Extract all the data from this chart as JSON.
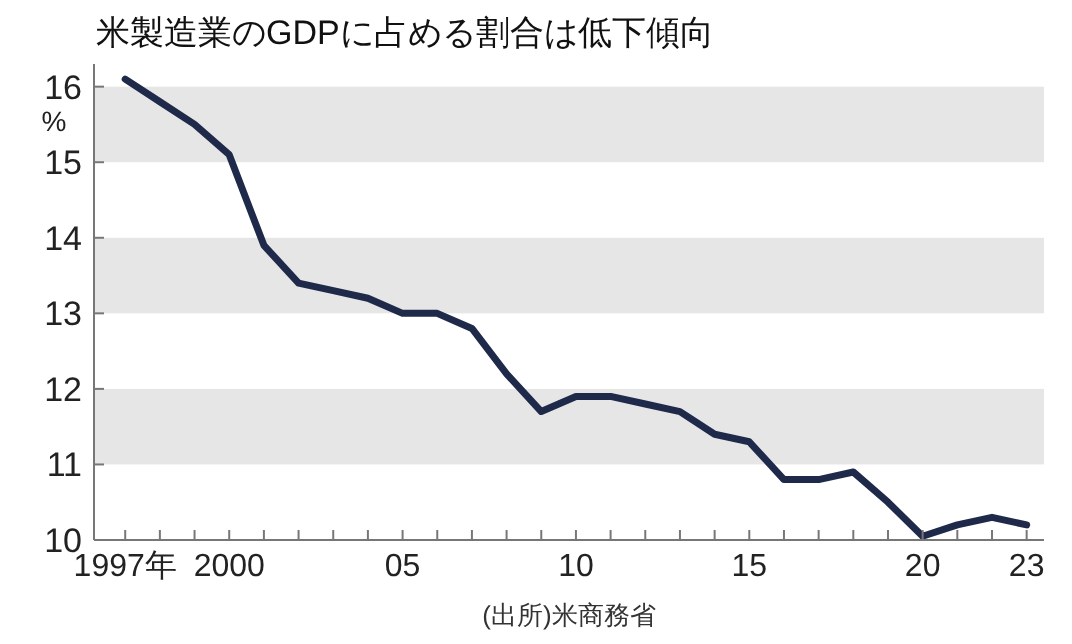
{
  "chart_data": {
    "type": "line",
    "title": "米製造業のGDPに占める割合は低下傾向",
    "ylabel": "%",
    "annotations": [
      "(出所)米商務省"
    ],
    "x": [
      1997,
      1998,
      1999,
      2000,
      2001,
      2002,
      2003,
      2004,
      2005,
      2006,
      2007,
      2008,
      2009,
      2010,
      2011,
      2012,
      2013,
      2014,
      2015,
      2016,
      2017,
      2018,
      2019,
      2020,
      2021,
      2022,
      2023
    ],
    "series": [
      {
        "color": "#1f2a4a",
        "values": [
          16.1,
          15.8,
          15.5,
          15.1,
          13.9,
          13.4,
          13.3,
          13.2,
          13.0,
          13.0,
          12.8,
          12.2,
          11.7,
          11.9,
          11.9,
          11.8,
          11.7,
          11.4,
          11.3,
          10.8,
          10.8,
          10.9,
          10.5,
          10.05,
          10.2,
          10.3,
          10.2
        ]
      }
    ],
    "xlim": [
      1996.1,
      2023.5
    ],
    "ylim": [
      10,
      16.3
    ],
    "xticks": [
      {
        "value": 1997,
        "label": "1997年"
      },
      {
        "value": 1998,
        "label": null
      },
      {
        "value": 1999,
        "label": null
      },
      2000,
      {
        "value": 2001,
        "label": null
      },
      {
        "value": 2002,
        "label": null
      },
      {
        "value": 2003,
        "label": null
      },
      {
        "value": 2004,
        "label": null
      },
      {
        "value": 2005,
        "label": "05"
      },
      {
        "value": 2006,
        "label": null
      },
      {
        "value": 2007,
        "label": null
      },
      {
        "value": 2008,
        "label": null
      },
      {
        "value": 2009,
        "label": null
      },
      {
        "value": 2010,
        "label": "10"
      },
      {
        "value": 2011,
        "label": null
      },
      {
        "value": 2012,
        "label": null
      },
      {
        "value": 2013,
        "label": null
      },
      {
        "value": 2014,
        "label": null
      },
      {
        "value": 2015,
        "label": "15"
      },
      {
        "value": 2016,
        "label": null
      },
      {
        "value": 2017,
        "label": null
      },
      {
        "value": 2018,
        "label": null
      },
      {
        "value": 2019,
        "label": null
      },
      {
        "value": 2020,
        "label": "20"
      },
      {
        "value": 2021,
        "label": null
      },
      {
        "value": 2022,
        "label": null
      },
      {
        "value": 2023,
        "label": "23"
      }
    ],
    "yticks": [
      10,
      11,
      12,
      13,
      14,
      15,
      16
    ],
    "bands": [
      {
        "axis": "y",
        "from": 15,
        "to": 16,
        "color": "#e6e6e6"
      },
      {
        "axis": "y",
        "from": 13,
        "to": 14,
        "color": "#e6e6e6"
      },
      {
        "axis": "y",
        "from": 11,
        "to": 12,
        "color": "#e6e6e6"
      }
    ],
    "marker": "none",
    "line_style": "solid",
    "grid": false
  }
}
